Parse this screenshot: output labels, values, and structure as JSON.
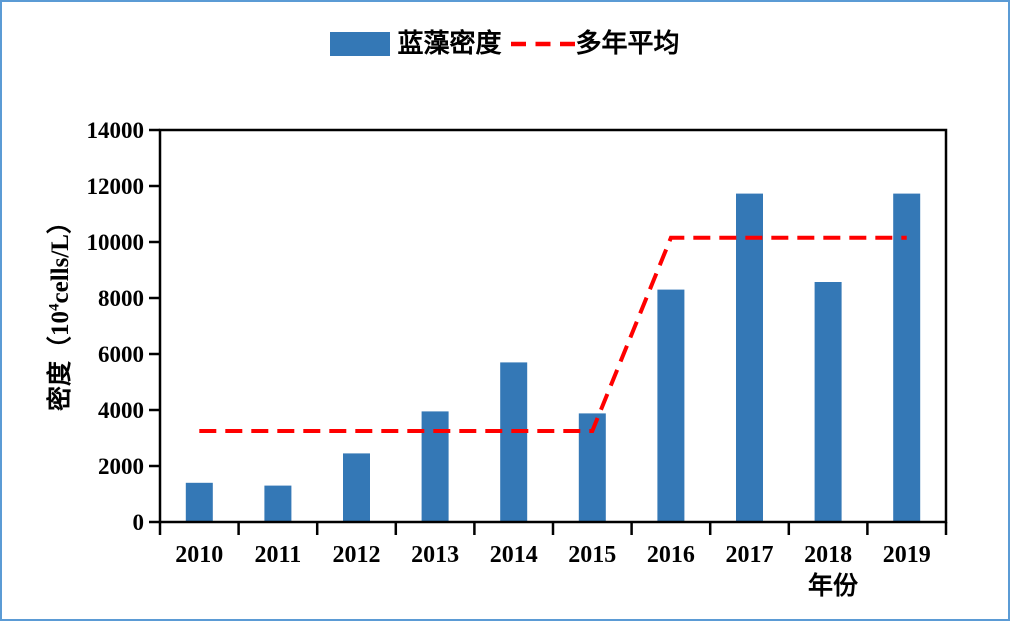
{
  "frame": {
    "border_color": "#5B9BD5",
    "background": "#FFFFFF"
  },
  "legend": {
    "bars_label": "蓝藻密度",
    "line_label": "多年平均",
    "bar_color": "#3478B6",
    "line_color": "#FF0000"
  },
  "axes": {
    "y_title_prefix": "密度（10",
    "y_title_sup": "4",
    "y_title_suffix": "cells/L）",
    "y_title_full": "密度（10⁴cells/L）",
    "x_title": "年份",
    "axis_color": "#000000"
  },
  "chart_data": {
    "type": "bar",
    "title": "",
    "categories": [
      "2010",
      "2011",
      "2012",
      "2013",
      "2014",
      "2015",
      "2016",
      "2017",
      "2018",
      "2019"
    ],
    "series": [
      {
        "name": "蓝藻密度",
        "type": "bar",
        "color": "#3478B6",
        "values": [
          1400,
          1300,
          2450,
          3950,
          5700,
          3880,
          8300,
          11730,
          8570,
          11730
        ]
      },
      {
        "name": "多年平均",
        "type": "line",
        "color": "#FF0000",
        "dashed": true,
        "values": [
          3250,
          3250,
          3250,
          3250,
          3250,
          3250,
          10150,
          10150,
          10150,
          10150
        ]
      }
    ],
    "xlabel": "年份",
    "ylabel": "密度（10⁴cells/L）",
    "ylim": [
      0,
      14000
    ],
    "yticks": [
      0,
      2000,
      4000,
      6000,
      8000,
      10000,
      12000,
      14000
    ],
    "grid": false,
    "legend_position": "top-center"
  }
}
